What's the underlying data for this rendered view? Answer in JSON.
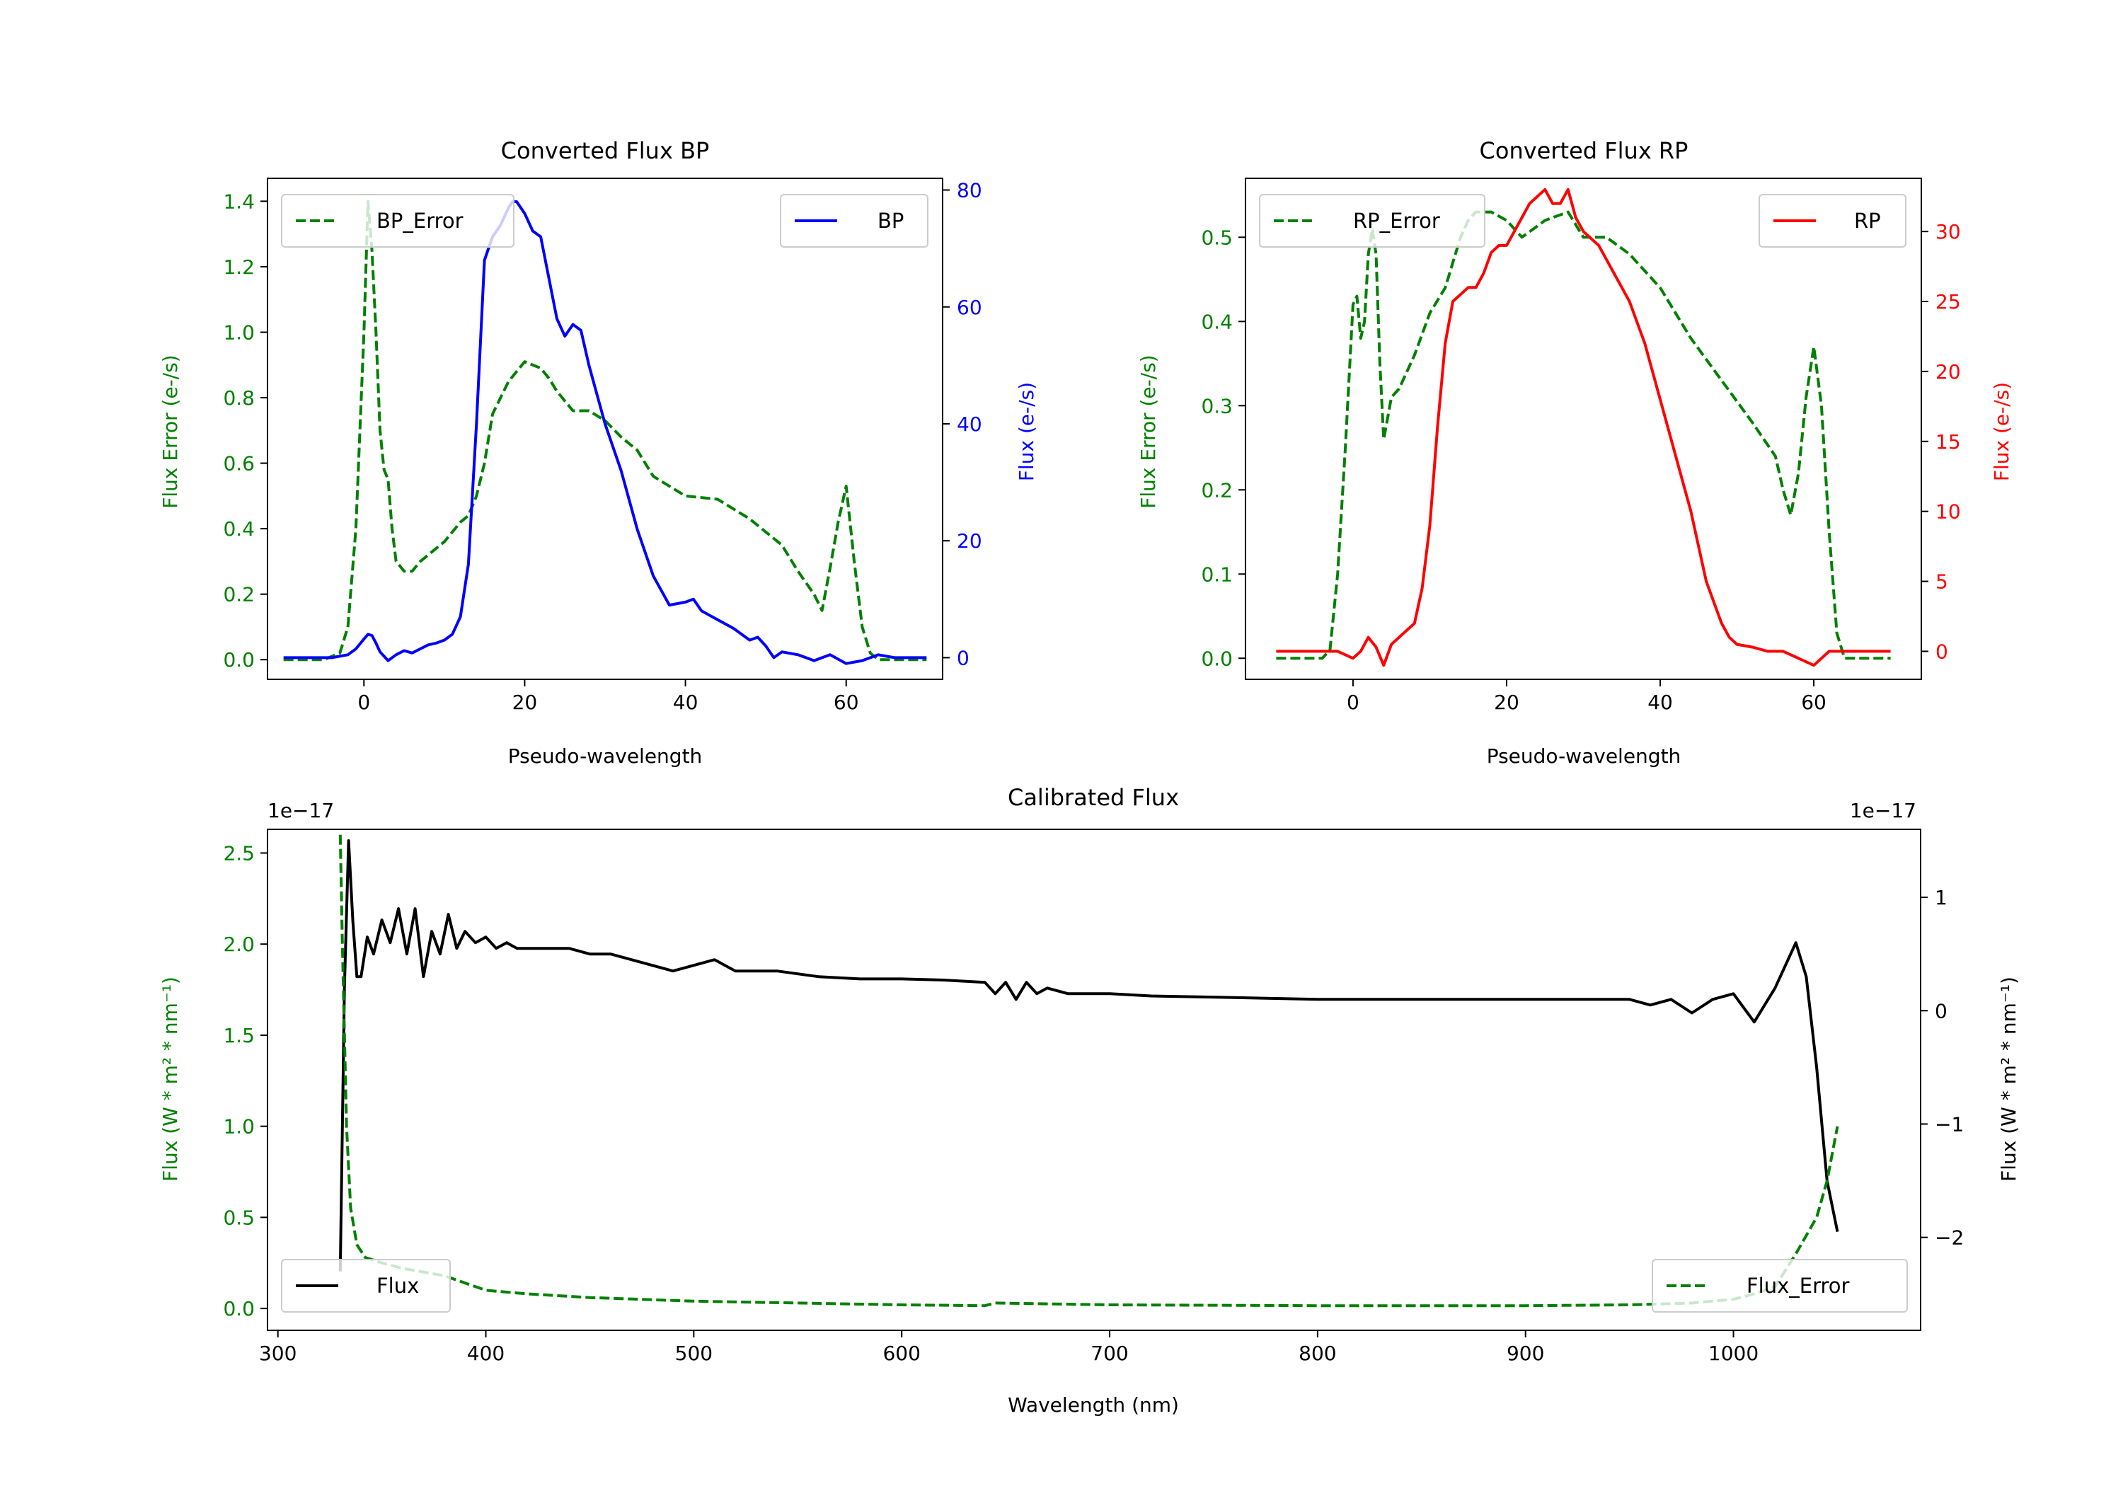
{
  "figure": {
    "colors": {
      "bp": "#0000ff",
      "rp": "#ff0000",
      "error": "#008000",
      "flux": "#000000",
      "axis": "#000000"
    }
  },
  "chart_data": [
    {
      "id": "bp",
      "type": "line",
      "title": "Converted Flux BP",
      "xlabel": "Pseudo-wavelength",
      "ylabel_left": "Flux Error (e-/s)",
      "ylabel_right": "Flux (e-/s)",
      "xlim": [
        -12,
        72
      ],
      "ylim_left": [
        -0.06,
        1.47
      ],
      "ylim_right": [
        -3.7,
        82
      ],
      "xticks": [
        0,
        20,
        40,
        60
      ],
      "xtick_labels": [
        "0",
        "20",
        "40",
        "60"
      ],
      "yticks_left": [
        0.0,
        0.2,
        0.4,
        0.6,
        0.8,
        1.0,
        1.2,
        1.4
      ],
      "ytick_labels_left": [
        "0.0",
        "0.2",
        "0.4",
        "0.6",
        "0.8",
        "1.0",
        "1.2",
        "1.4"
      ],
      "yticks_right": [
        0,
        20,
        40,
        60,
        80
      ],
      "ytick_labels_right": [
        "0",
        "20",
        "40",
        "60",
        "80"
      ],
      "legend_left": {
        "label": "BP_Error",
        "location": "upper left"
      },
      "legend_right": {
        "label": "BP",
        "location": "upper right"
      },
      "series": [
        {
          "name": "BP_Error",
          "axis": "left",
          "style": "dashed",
          "color_key": "error",
          "x": [
            -10,
            -5,
            -3,
            -2,
            -1,
            0,
            0.5,
            1,
            1.5,
            2,
            2.5,
            3,
            3.5,
            4,
            5,
            6,
            7,
            8,
            10,
            12,
            13,
            14,
            15,
            16,
            18,
            19,
            20,
            22,
            23,
            24,
            26,
            28,
            30,
            32,
            34,
            36,
            40,
            44,
            48,
            52,
            54,
            56,
            57,
            58,
            59,
            60,
            61,
            62,
            63,
            64,
            66,
            70
          ],
          "values": [
            0.0,
            0.0,
            0.02,
            0.1,
            0.4,
            1.0,
            1.4,
            1.25,
            1.0,
            0.7,
            0.58,
            0.55,
            0.4,
            0.3,
            0.27,
            0.27,
            0.3,
            0.32,
            0.36,
            0.42,
            0.44,
            0.5,
            0.6,
            0.75,
            0.85,
            0.88,
            0.91,
            0.89,
            0.86,
            0.82,
            0.76,
            0.76,
            0.73,
            0.68,
            0.64,
            0.56,
            0.5,
            0.49,
            0.43,
            0.35,
            0.27,
            0.2,
            0.15,
            0.28,
            0.42,
            0.53,
            0.3,
            0.1,
            0.02,
            0.0,
            0.0,
            0.0
          ]
        },
        {
          "name": "BP",
          "axis": "right",
          "style": "solid",
          "color_key": "bp",
          "x": [
            -10,
            -4,
            -2,
            -1,
            0,
            0.5,
            1,
            1.5,
            2,
            3,
            4,
            5,
            6,
            7,
            8,
            9,
            10,
            11,
            12,
            13,
            14,
            15,
            16,
            17,
            18,
            18.5,
            19,
            20,
            21,
            22,
            23,
            24,
            25,
            26,
            27,
            28,
            30,
            32,
            34,
            36,
            38,
            40,
            41,
            42,
            44,
            46,
            48,
            49,
            50,
            51,
            52,
            54,
            56,
            58,
            60,
            62,
            64,
            66,
            70
          ],
          "values": [
            0,
            0,
            0.5,
            1.5,
            3.2,
            4,
            3.8,
            2.5,
            1.0,
            -0.5,
            0.5,
            1.2,
            0.8,
            1.5,
            2.2,
            2.5,
            3.0,
            4.0,
            7.0,
            16,
            40,
            68,
            72,
            74,
            77,
            78,
            78,
            76,
            73,
            72,
            65,
            58,
            55,
            57,
            56,
            50,
            40,
            32,
            22,
            14,
            9,
            9.5,
            10,
            8,
            6.5,
            5,
            3,
            3.5,
            2,
            0,
            1,
            0.5,
            -0.5,
            0.5,
            -1,
            -0.5,
            0.5,
            0,
            0
          ]
        }
      ]
    },
    {
      "id": "rp",
      "type": "line",
      "title": "Converted Flux RP",
      "xlabel": "Pseudo-wavelength",
      "ylabel_left": "Flux Error (e-/s)",
      "ylabel_right": "Flux (e-/s)",
      "xlim": [
        -14,
        74
      ],
      "ylim_left": [
        -0.025,
        0.57
      ],
      "ylim_right": [
        -2.0,
        33.8
      ],
      "xticks": [
        0,
        20,
        40,
        60
      ],
      "xtick_labels": [
        "0",
        "20",
        "40",
        "60"
      ],
      "yticks_left": [
        0.0,
        0.1,
        0.2,
        0.3,
        0.4,
        0.5
      ],
      "ytick_labels_left": [
        "0.0",
        "0.1",
        "0.2",
        "0.3",
        "0.4",
        "0.5"
      ],
      "yticks_right": [
        0,
        5,
        10,
        15,
        20,
        25,
        30
      ],
      "ytick_labels_right": [
        "0",
        "5",
        "10",
        "15",
        "20",
        "25",
        "30"
      ],
      "legend_left": {
        "label": "RP_Error",
        "location": "upper left"
      },
      "legend_right": {
        "label": "RP",
        "location": "upper right"
      },
      "series": [
        {
          "name": "RP_Error",
          "axis": "left",
          "style": "dashed",
          "color_key": "error",
          "x": [
            -10,
            -5,
            -4,
            -3,
            -2,
            -1,
            0,
            0.5,
            1,
            1.5,
            2,
            2.5,
            3,
            3.5,
            4,
            5,
            6,
            8,
            10,
            12,
            13,
            14,
            15,
            16,
            18,
            20,
            22,
            25,
            28,
            30,
            33,
            36,
            40,
            44,
            48,
            52,
            55,
            56,
            57,
            58,
            59,
            60,
            61,
            62,
            63,
            64,
            66,
            70
          ],
          "values": [
            0.0,
            0.0,
            0.0,
            0.01,
            0.1,
            0.25,
            0.42,
            0.43,
            0.38,
            0.4,
            0.48,
            0.51,
            0.48,
            0.35,
            0.26,
            0.31,
            0.32,
            0.36,
            0.41,
            0.44,
            0.47,
            0.5,
            0.52,
            0.53,
            0.53,
            0.52,
            0.5,
            0.52,
            0.53,
            0.5,
            0.5,
            0.48,
            0.44,
            0.38,
            0.33,
            0.28,
            0.24,
            0.2,
            0.17,
            0.22,
            0.31,
            0.37,
            0.3,
            0.15,
            0.03,
            0.0,
            0.0,
            0.0
          ]
        },
        {
          "name": "RP",
          "axis": "right",
          "style": "solid",
          "color_key": "rp",
          "x": [
            -10,
            -5,
            -2,
            0,
            1,
            2,
            3,
            4,
            5,
            6,
            8,
            9,
            10,
            11,
            12,
            13,
            14,
            15,
            16,
            17,
            18,
            19,
            20,
            21,
            22,
            23,
            24,
            25,
            26,
            27,
            28,
            29,
            30,
            32,
            34,
            36,
            38,
            40,
            42,
            44,
            46,
            48,
            49,
            50,
            52,
            54,
            56,
            58,
            60,
            62,
            64,
            66,
            70
          ],
          "values": [
            0,
            0,
            0,
            -0.5,
            0,
            1,
            0.3,
            -1,
            0.5,
            1.0,
            2.0,
            4.5,
            9,
            16,
            22,
            25,
            25.5,
            26,
            26,
            27,
            28.5,
            29,
            29,
            30,
            31,
            32,
            32.5,
            33,
            32,
            32,
            33,
            31,
            30,
            29,
            27,
            25,
            22,
            18,
            14,
            10,
            5,
            2,
            1,
            0.5,
            0.3,
            0,
            0,
            -0.5,
            -1,
            0,
            0,
            0,
            0
          ]
        }
      ]
    },
    {
      "id": "calibrated",
      "type": "line",
      "title": "Calibrated Flux",
      "xlabel": "Wavelength (nm)",
      "ylabel_left": "Flux (W * m² * nm⁻¹)",
      "ylabel_right": "Flux (W * m² * nm⁻¹)",
      "offset_left": "1e−17",
      "offset_right": "1e−17",
      "xlim": [
        295,
        1090
      ],
      "ylim_left": [
        -0.12,
        2.63
      ],
      "ylim_right": [
        -2.82,
        1.6
      ],
      "xticks": [
        300,
        400,
        500,
        600,
        700,
        800,
        900,
        1000
      ],
      "xtick_labels": [
        "300",
        "400",
        "500",
        "600",
        "700",
        "800",
        "900",
        "1000"
      ],
      "yticks_left": [
        0.0,
        0.5,
        1.0,
        1.5,
        2.0,
        2.5
      ],
      "ytick_labels_left": [
        "0.0",
        "0.5",
        "1.0",
        "1.5",
        "2.0",
        "2.5"
      ],
      "yticks_right": [
        -2,
        -1,
        0,
        1
      ],
      "ytick_labels_right": [
        "−2",
        "−1",
        "0",
        "1"
      ],
      "legend_left": {
        "label": "Flux",
        "location": "lower left"
      },
      "legend_right": {
        "label": "Flux_Error",
        "location": "lower right"
      },
      "series": [
        {
          "name": "Flux",
          "axis": "right",
          "style": "solid",
          "color_key": "flux",
          "x": [
            330,
            332,
            334,
            336,
            338,
            340,
            343,
            346,
            350,
            354,
            358,
            362,
            366,
            370,
            374,
            378,
            382,
            386,
            390,
            395,
            400,
            405,
            410,
            415,
            420,
            430,
            440,
            450,
            460,
            470,
            480,
            490,
            500,
            510,
            520,
            530,
            540,
            560,
            580,
            600,
            620,
            640,
            645,
            650,
            655,
            660,
            665,
            670,
            680,
            700,
            720,
            750,
            800,
            850,
            900,
            950,
            960,
            970,
            980,
            990,
            1000,
            1010,
            1020,
            1030,
            1035,
            1040,
            1045,
            1050
          ],
          "values": [
            -2.3,
            0.2,
            1.5,
            0.8,
            0.3,
            0.3,
            0.65,
            0.5,
            0.8,
            0.6,
            0.9,
            0.5,
            0.9,
            0.3,
            0.7,
            0.5,
            0.85,
            0.55,
            0.7,
            0.6,
            0.65,
            0.55,
            0.6,
            0.55,
            0.55,
            0.55,
            0.55,
            0.5,
            0.5,
            0.45,
            0.4,
            0.35,
            0.4,
            0.45,
            0.35,
            0.35,
            0.35,
            0.3,
            0.28,
            0.28,
            0.27,
            0.25,
            0.15,
            0.25,
            0.1,
            0.25,
            0.15,
            0.2,
            0.15,
            0.15,
            0.13,
            0.12,
            0.1,
            0.1,
            0.1,
            0.1,
            0.05,
            0.1,
            -0.02,
            0.1,
            0.15,
            -0.1,
            0.2,
            0.6,
            0.3,
            -0.5,
            -1.5,
            -1.95
          ]
        },
        {
          "name": "Flux_Error",
          "axis": "left",
          "style": "dashed",
          "color_key": "error",
          "x": [
            330,
            331,
            333,
            335,
            338,
            342,
            350,
            360,
            370,
            380,
            390,
            400,
            420,
            450,
            500,
            550,
            600,
            640,
            645,
            700,
            800,
            900,
            950,
            980,
            1000,
            1010,
            1020,
            1030,
            1035,
            1040,
            1045,
            1050
          ],
          "values": [
            2.6,
            2.0,
            1.0,
            0.55,
            0.35,
            0.28,
            0.25,
            0.22,
            0.2,
            0.18,
            0.14,
            0.1,
            0.08,
            0.06,
            0.04,
            0.03,
            0.02,
            0.015,
            0.03,
            0.02,
            0.015,
            0.015,
            0.02,
            0.03,
            0.05,
            0.08,
            0.12,
            0.3,
            0.4,
            0.5,
            0.7,
            1.0
          ]
        }
      ]
    }
  ]
}
